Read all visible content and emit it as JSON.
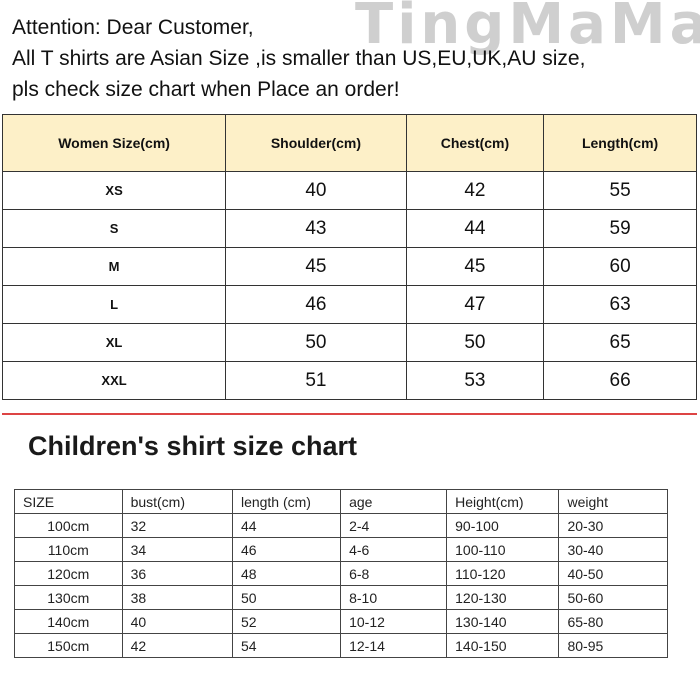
{
  "watermark": "TingMaMa",
  "notice": [
    "Attention: Dear Customer,",
    "All T shirts are  Asian Size ,is smaller than US,EU,UK,AU size,",
    "pls check size chart when Place an order!"
  ],
  "women": {
    "headers": [
      "Women Size(cm)",
      "Shoulder(cm)",
      "Chest(cm)",
      "Length(cm)"
    ],
    "rows": [
      [
        "XS",
        "40",
        "42",
        "55"
      ],
      [
        "S",
        "43",
        "44",
        "59"
      ],
      [
        "M",
        "45",
        "45",
        "60"
      ],
      [
        "L",
        "46",
        "47",
        "63"
      ],
      [
        "XL",
        "50",
        "50",
        "65"
      ],
      [
        "XXL",
        "51",
        "53",
        "66"
      ]
    ]
  },
  "children": {
    "title": "Children's shirt size chart",
    "headers": [
      "SIZE",
      "bust(cm)",
      "length (cm)",
      "age",
      "Height(cm)",
      "weight"
    ],
    "rows": [
      [
        "100cm",
        "32",
        "44",
        "2-4",
        "90-100",
        "20-30"
      ],
      [
        "110cm",
        "34",
        "46",
        "4-6",
        "100-110",
        "30-40"
      ],
      [
        "120cm",
        "36",
        "48",
        "6-8",
        "110-120",
        "40-50"
      ],
      [
        "130cm",
        "38",
        "50",
        "8-10",
        "120-130",
        "50-60"
      ],
      [
        "140cm",
        "40",
        "52",
        "10-12",
        "130-140",
        "65-80"
      ],
      [
        "150cm",
        "42",
        "54",
        "12-14",
        "140-150",
        "80-95"
      ]
    ]
  },
  "colors": {
    "header_bg": "#fdf0c8",
    "divider": "#dd4444"
  }
}
